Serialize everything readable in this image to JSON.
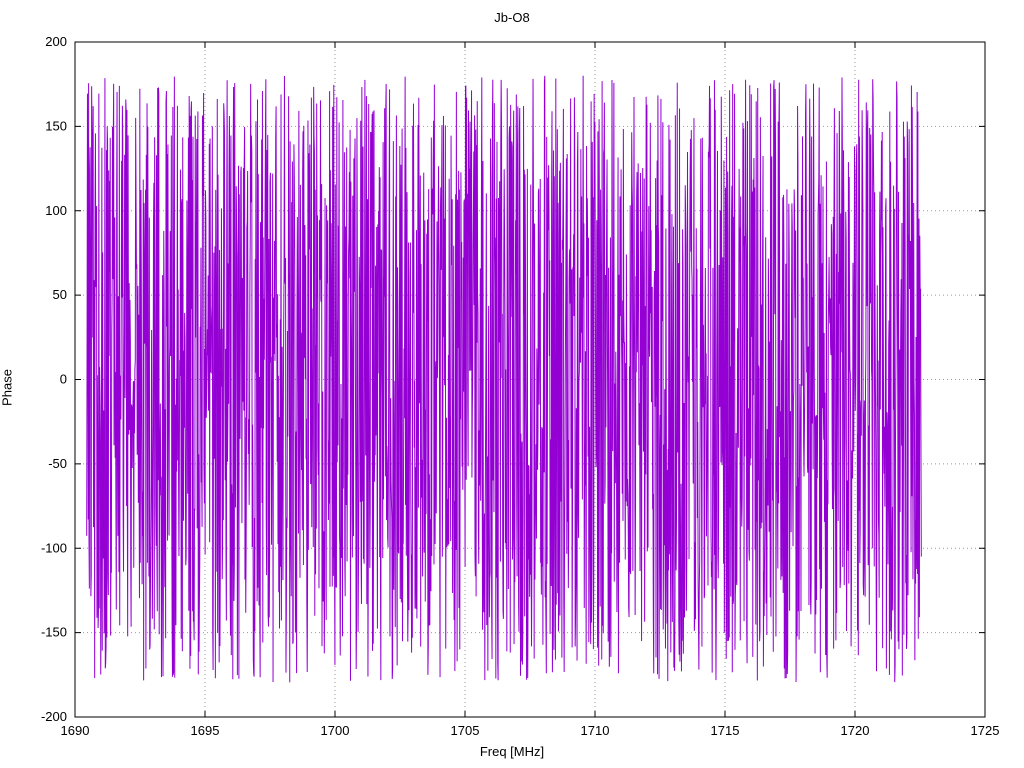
{
  "chart_data": {
    "type": "line",
    "title": "Jb-O8",
    "xlabel": "Freq [MHz]",
    "ylabel": "Phase",
    "xlim": [
      1690,
      1725
    ],
    "ylim": [
      -200,
      200
    ],
    "xticks": [
      1690,
      1695,
      1700,
      1705,
      1710,
      1715,
      1720,
      1725
    ],
    "yticks": [
      -200,
      -150,
      -100,
      -50,
      0,
      50,
      100,
      150,
      200
    ],
    "grid": true,
    "grid_style": "dotted",
    "grid_color": "#9a9a9a",
    "border_color": "#000000",
    "line_color": "#9400d3",
    "legend": "none",
    "series": [
      {
        "name": "phase",
        "description": "wrapped phase noise, values uniformly scattered between -180 and +180 degrees with frequent wrap-around jumps",
        "x_start": 1690.45,
        "x_end": 1722.55,
        "points": 2200,
        "y_min": -180,
        "y_max": 180,
        "walk_step": 150,
        "seed": 1234
      }
    ]
  }
}
